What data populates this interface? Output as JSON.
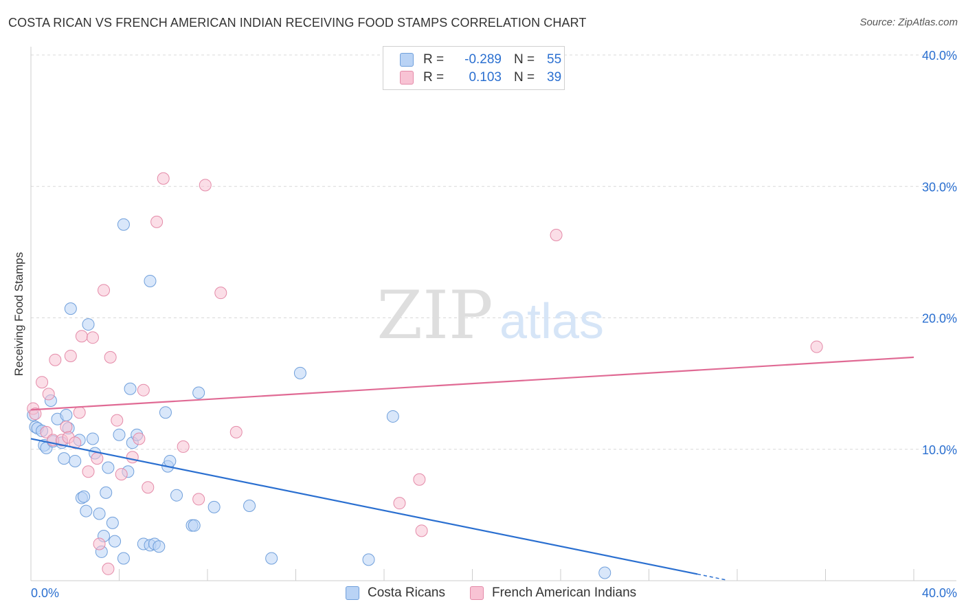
{
  "header": {
    "title": "COSTA RICAN VS FRENCH AMERICAN INDIAN RECEIVING FOOD STAMPS CORRELATION CHART",
    "source": "Source: ZipAtlas.com"
  },
  "watermark": {
    "zip": "ZIP",
    "atlas": "atlas"
  },
  "legend": {
    "rows": [
      {
        "r_label": "R =",
        "r_value": "-0.289",
        "n_label": "N =",
        "n_value": "55"
      },
      {
        "r_label": "R =",
        "r_value": "0.103",
        "n_label": "N =",
        "n_value": "39"
      }
    ]
  },
  "colors": {
    "blue_fill": "#b9d3f5",
    "blue_stroke": "#6f9fdb",
    "blue_line": "#2a6fd0",
    "pink_fill": "#f8c3d4",
    "pink_stroke": "#e48aa8",
    "pink_line": "#e06a94",
    "value_text": "#2a6fd0",
    "grid": "#d8d8d8",
    "axis": "#cccccc"
  },
  "chart_data": {
    "type": "scatter",
    "title": "COSTA RICAN VS FRENCH AMERICAN INDIAN RECEIVING FOOD STAMPS CORRELATION CHART",
    "xlabel": "",
    "ylabel": "Receiving Food Stamps",
    "xlim": [
      0,
      40
    ],
    "ylim": [
      0,
      40
    ],
    "x_tick_labels": [
      "0.0%",
      "40.0%"
    ],
    "y_tick_values": [
      10,
      20,
      30,
      40
    ],
    "y_tick_labels": [
      "10.0%",
      "20.0%",
      "30.0%",
      "40.0%"
    ],
    "legend_position": "bottom",
    "series": [
      {
        "name": "Costa Ricans",
        "color": "#6f9fdb",
        "r": -0.289,
        "n": 55,
        "trend": {
          "x": [
            0,
            30.2
          ],
          "y": [
            10.8,
            0.5
          ],
          "dash_to_x": 31.5
        },
        "points": [
          [
            0.1,
            12.6
          ],
          [
            0.2,
            11.7
          ],
          [
            0.3,
            11.6
          ],
          [
            0.5,
            11.4
          ],
          [
            0.6,
            10.3
          ],
          [
            0.7,
            10.1
          ],
          [
            0.9,
            13.7
          ],
          [
            1.0,
            10.6
          ],
          [
            1.2,
            12.3
          ],
          [
            1.4,
            10.5
          ],
          [
            1.5,
            9.3
          ],
          [
            1.6,
            12.6
          ],
          [
            1.7,
            11.6
          ],
          [
            1.8,
            20.7
          ],
          [
            2.0,
            9.1
          ],
          [
            2.2,
            10.7
          ],
          [
            2.3,
            6.3
          ],
          [
            2.4,
            6.4
          ],
          [
            2.5,
            5.3
          ],
          [
            2.6,
            19.5
          ],
          [
            2.8,
            10.8
          ],
          [
            2.9,
            9.7
          ],
          [
            3.1,
            5.1
          ],
          [
            3.2,
            2.2
          ],
          [
            3.3,
            3.4
          ],
          [
            3.4,
            6.7
          ],
          [
            3.5,
            8.6
          ],
          [
            3.7,
            4.4
          ],
          [
            3.8,
            3.0
          ],
          [
            4.0,
            11.1
          ],
          [
            4.2,
            27.1
          ],
          [
            4.2,
            1.7
          ],
          [
            4.4,
            8.3
          ],
          [
            4.5,
            14.6
          ],
          [
            4.6,
            10.5
          ],
          [
            4.8,
            11.1
          ],
          [
            5.1,
            2.8
          ],
          [
            5.4,
            22.8
          ],
          [
            5.4,
            2.7
          ],
          [
            5.6,
            2.8
          ],
          [
            5.8,
            2.6
          ],
          [
            6.1,
            12.8
          ],
          [
            6.2,
            8.7
          ],
          [
            6.3,
            9.1
          ],
          [
            6.6,
            6.5
          ],
          [
            7.3,
            4.2
          ],
          [
            7.4,
            4.2
          ],
          [
            7.6,
            14.3
          ],
          [
            8.3,
            5.6
          ],
          [
            9.9,
            5.7
          ],
          [
            10.9,
            1.7
          ],
          [
            12.2,
            15.8
          ],
          [
            15.3,
            1.6
          ],
          [
            16.4,
            12.5
          ],
          [
            26.0,
            0.6
          ]
        ]
      },
      {
        "name": "French American Indians",
        "color": "#e48aa8",
        "r": 0.103,
        "n": 39,
        "trend": {
          "x": [
            0,
            40
          ],
          "y": [
            13.0,
            17.0
          ]
        },
        "points": [
          [
            0.1,
            13.1
          ],
          [
            0.2,
            12.7
          ],
          [
            0.5,
            15.1
          ],
          [
            0.7,
            11.3
          ],
          [
            0.8,
            14.2
          ],
          [
            1.0,
            10.7
          ],
          [
            1.1,
            16.8
          ],
          [
            1.4,
            10.7
          ],
          [
            1.6,
            11.7
          ],
          [
            1.7,
            10.9
          ],
          [
            1.8,
            17.1
          ],
          [
            2.0,
            10.5
          ],
          [
            2.2,
            12.8
          ],
          [
            2.3,
            18.6
          ],
          [
            2.6,
            8.3
          ],
          [
            2.8,
            18.5
          ],
          [
            3.0,
            9.3
          ],
          [
            3.1,
            2.8
          ],
          [
            3.3,
            22.1
          ],
          [
            3.5,
            0.9
          ],
          [
            3.6,
            17.0
          ],
          [
            3.9,
            12.2
          ],
          [
            4.1,
            8.1
          ],
          [
            4.6,
            9.4
          ],
          [
            4.9,
            10.8
          ],
          [
            5.1,
            14.5
          ],
          [
            5.3,
            7.1
          ],
          [
            5.7,
            27.3
          ],
          [
            6.0,
            30.6
          ],
          [
            6.9,
            10.2
          ],
          [
            7.6,
            6.2
          ],
          [
            7.9,
            30.1
          ],
          [
            8.6,
            21.9
          ],
          [
            9.3,
            11.3
          ],
          [
            16.7,
            5.9
          ],
          [
            17.6,
            7.7
          ],
          [
            17.7,
            3.8
          ],
          [
            23.8,
            26.3
          ],
          [
            35.6,
            17.8
          ]
        ]
      }
    ]
  }
}
